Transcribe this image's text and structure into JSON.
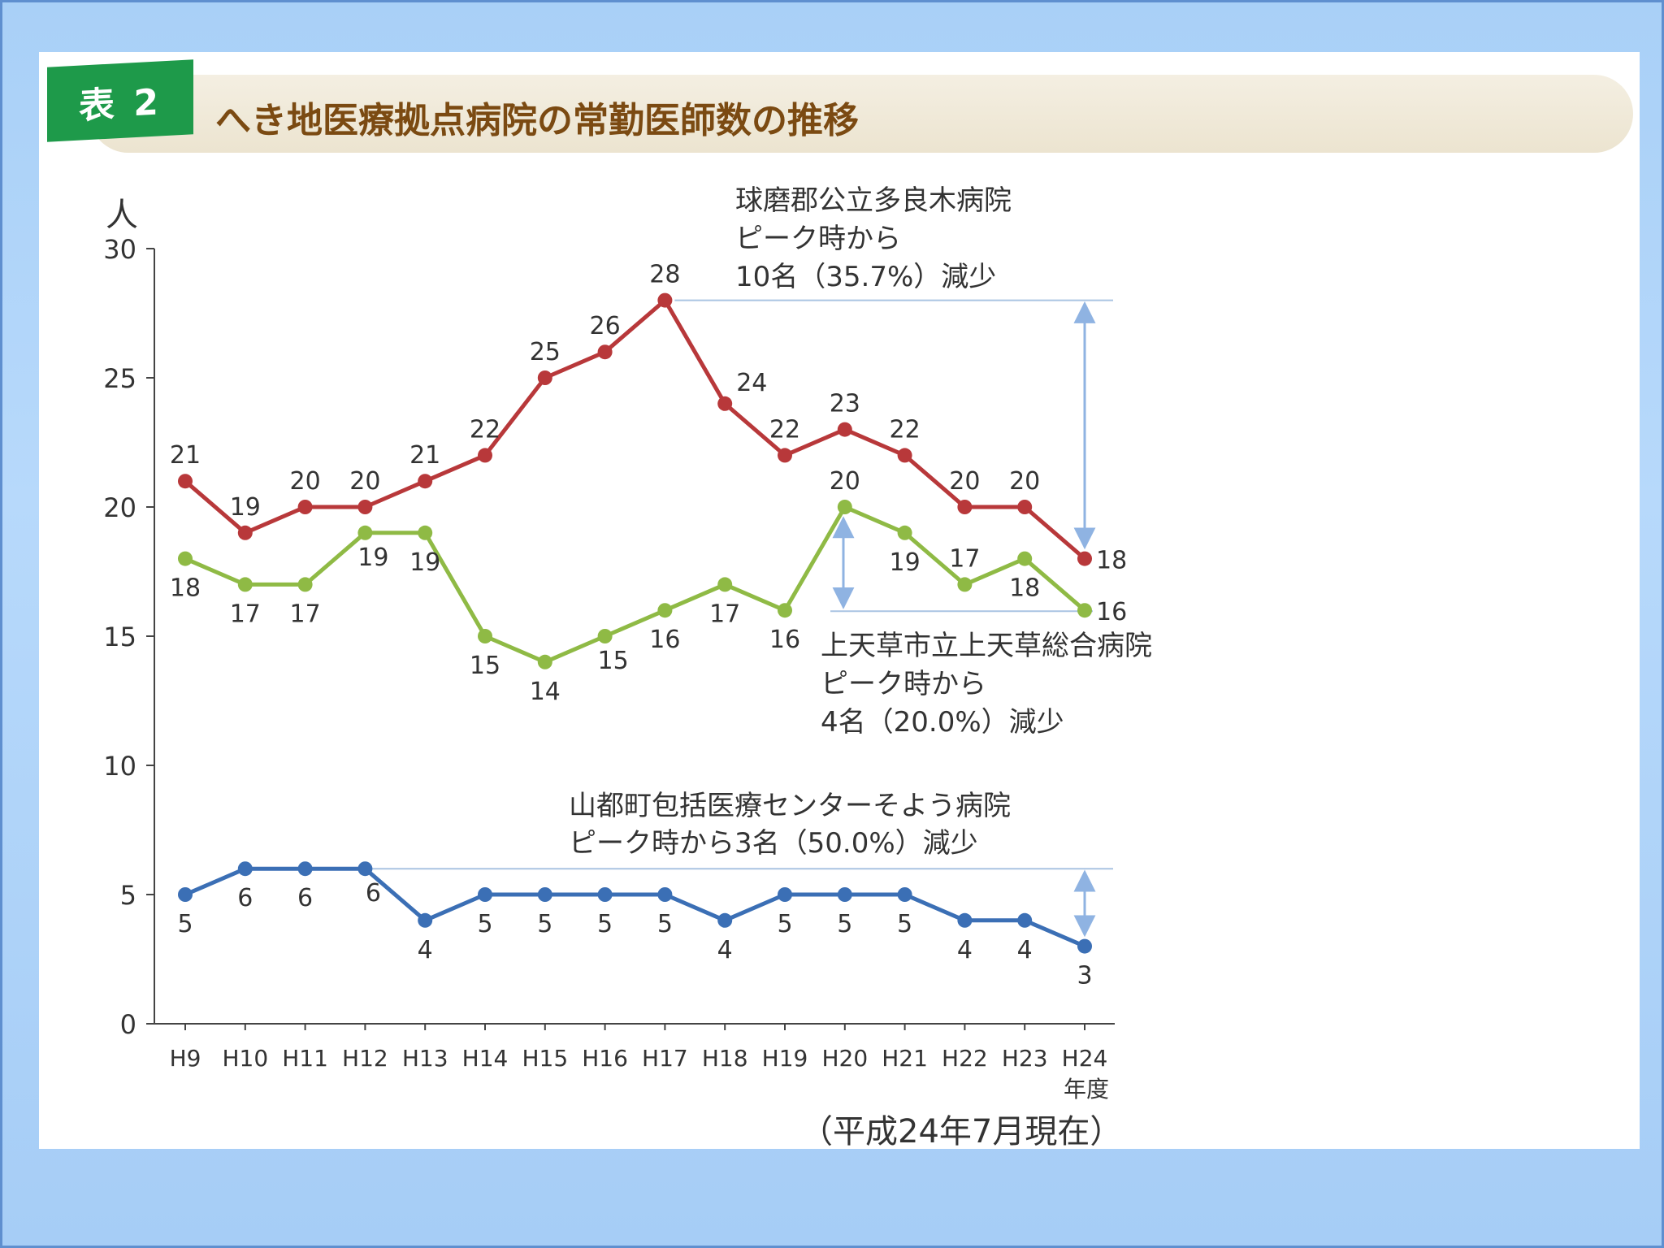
{
  "header": {
    "tag": "表 2",
    "title": "へき地医療拠点病院の常勤医師数の推移",
    "as_of": "（平成24年7月現在）"
  },
  "colors": {
    "series_red": "#b8383a",
    "series_green": "#8fba45",
    "series_blue": "#3b6fb5",
    "axis": "#444444",
    "guide": "#aac4e2",
    "arrow": "#8fb3e2",
    "tag_green": "#1e9a4a",
    "title_brown": "#7b4a12"
  },
  "chart_data": {
    "type": "line",
    "ylabel": "人",
    "xlabel": "年度",
    "ylim": [
      0,
      30
    ],
    "yticks": [
      0,
      5,
      10,
      15,
      20,
      25,
      30
    ],
    "categories": [
      "H9",
      "H10",
      "H11",
      "H12",
      "H13",
      "H14",
      "H15",
      "H16",
      "H17",
      "H18",
      "H19",
      "H20",
      "H21",
      "H22",
      "H23",
      "H24"
    ],
    "grid": false,
    "series": [
      {
        "key": "red",
        "values": [
          21,
          19,
          20,
          20,
          21,
          22,
          25,
          26,
          28,
          24,
          22,
          23,
          22,
          20,
          20,
          18
        ],
        "label_pos": [
          "above",
          "above",
          "above",
          "above",
          "above",
          "above",
          "above",
          "above",
          "above",
          "above-right",
          "above",
          "above",
          "above",
          "above",
          "above",
          "right"
        ]
      },
      {
        "key": "green",
        "values": [
          18,
          17,
          17,
          19,
          19,
          15,
          14,
          15,
          16,
          17,
          16,
          20,
          19,
          17,
          18,
          16
        ],
        "label_pos": [
          "below",
          "below",
          "below",
          "below-right",
          "below",
          "below",
          "below",
          "below-right",
          "below",
          "below",
          "below",
          "above",
          "below",
          "above",
          "below",
          "right"
        ]
      },
      {
        "key": "blue",
        "values": [
          5,
          6,
          6,
          6,
          4,
          5,
          5,
          5,
          5,
          4,
          5,
          5,
          5,
          4,
          4,
          3
        ],
        "label_pos": [
          "below",
          "below",
          "below",
          "below-right",
          "below",
          "below",
          "below",
          "below",
          "below",
          "below",
          "below",
          "below",
          "below",
          "below",
          "below",
          "below"
        ]
      }
    ],
    "annotations": [
      {
        "series": "red",
        "lines": [
          "球磨郡公立多良木病院",
          "ピーク時から",
          "10名（35.7%）減少"
        ],
        "peak_value": 28,
        "end_value": 18
      },
      {
        "series": "green",
        "lines": [
          "上天草市立上天草総合病院",
          "ピーク時から",
          "4名（20.0%）減少"
        ],
        "peak_value": 20,
        "end_value": 16
      },
      {
        "series": "blue",
        "lines": [
          "山都町包括医療センターそよう病院",
          "ピーク時から3名（50.0%）減少"
        ],
        "peak_value": 6,
        "end_value": 3
      }
    ]
  }
}
